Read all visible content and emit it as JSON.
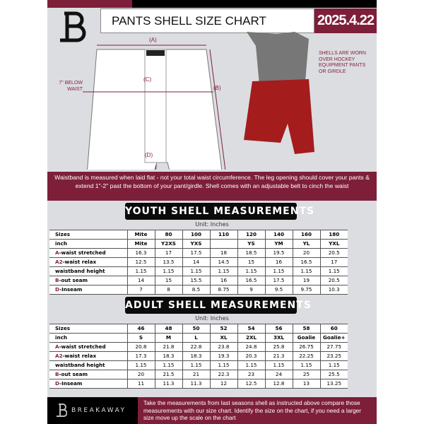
{
  "header": {
    "title": "PANTS SHELL SIZE CHART",
    "date": "2025.4.22"
  },
  "diagram": {
    "label_a": "(A)",
    "label_b": "(B)",
    "label_c": "(C)",
    "label_d": "(D)",
    "below_waist": "7\" BELOW WAIST",
    "note": "SHELLS ARE WORN OVER HOCKEY EQUIPMENT PANTS OR GIRDLE"
  },
  "colors": {
    "accent": "#7e1f3a",
    "dark": "#0b0b0b",
    "background": "#dcdde1"
  },
  "info_band": "Waistband is measured when laid flat - not your total waist circumference. The leg opening should cover your pants & extend 1\"-2\" past the bottom of your pant/girdle. Shell comes with an adjustable belt to cinch the waist",
  "youth": {
    "title": "YOUTH SHELL MEASUREMENTS",
    "unit": "Unit: Inches",
    "rows": [
      {
        "label": "Sizes",
        "values": [
          "Mite",
          "80",
          "100",
          "110",
          "120",
          "140",
          "160",
          "180"
        ]
      },
      {
        "label": "inch",
        "values": [
          "Mite",
          "Y2XS",
          "YXS",
          "",
          "YS",
          "YM",
          "YL",
          "YXL"
        ]
      },
      {
        "prefix": "A",
        "label": "-waist stretched",
        "values": [
          "16.3",
          "17",
          "17.5",
          "18",
          "18.5",
          "19.5",
          "20",
          "20.5"
        ]
      },
      {
        "prefix": "A2",
        "label": "-waist relax",
        "values": [
          "12.5",
          "13.5",
          "14",
          "14.5",
          "15",
          "16",
          "16.5",
          "17"
        ]
      },
      {
        "label": "waistband height",
        "values": [
          "1.15",
          "1.15",
          "1.15",
          "1.15",
          "1.15",
          "1.15",
          "1.15",
          "1.15"
        ]
      },
      {
        "prefix": "B",
        "label": "-out seam",
        "values": [
          "14",
          "15",
          "15.5",
          "16",
          "16.5",
          "17.5",
          "19",
          "20.5"
        ]
      },
      {
        "prefix": "D",
        "label": "-Inseam",
        "values": [
          "7",
          "8",
          "8.5",
          "8.75",
          "9",
          "9.5",
          "9.75",
          "10.3"
        ]
      }
    ]
  },
  "adult": {
    "title": "ADULT SHELL MEASUREMENTS",
    "unit": "Unit: Inches",
    "rows": [
      {
        "label": "Sizes",
        "values": [
          "46",
          "48",
          "50",
          "52",
          "54",
          "56",
          "58",
          "60"
        ]
      },
      {
        "label": "inch",
        "values": [
          "S",
          "M",
          "L",
          "XL",
          "2XL",
          "3XL",
          "Goalie",
          "Goalie+"
        ]
      },
      {
        "prefix": "A",
        "label": "-waist stretched",
        "values": [
          "20.8",
          "21.8",
          "22.8",
          "23.8",
          "24.8",
          "25.8",
          "26.75",
          "27.75"
        ]
      },
      {
        "prefix": "A2",
        "label": "-waist relax",
        "values": [
          "17.3",
          "18.3",
          "18.3",
          "19.3",
          "20.3",
          "21.3",
          "22.25",
          "23.25"
        ]
      },
      {
        "label": "waistband height",
        "values": [
          "1.15",
          "1.15",
          "1.15",
          "1.15",
          "1.15",
          "1.15",
          "1.15",
          "1.15"
        ]
      },
      {
        "prefix": "B",
        "label": "-out seam",
        "values": [
          "20",
          "21.5",
          "21",
          "22.3",
          "23",
          "24",
          "25",
          "25.5"
        ]
      },
      {
        "prefix": "D",
        "label": "-Inseam",
        "values": [
          "11",
          "11.3",
          "11.3",
          "12",
          "12.5",
          "12.8",
          "13",
          "13.25"
        ]
      }
    ]
  },
  "footer": {
    "brand": "BREAKAWAY",
    "text": "Take the measurements from last seasons shell as instructed above compare those measurements  with our size chart. Identify the size on the chart, if you need a larger size move up the scale on the chart"
  }
}
